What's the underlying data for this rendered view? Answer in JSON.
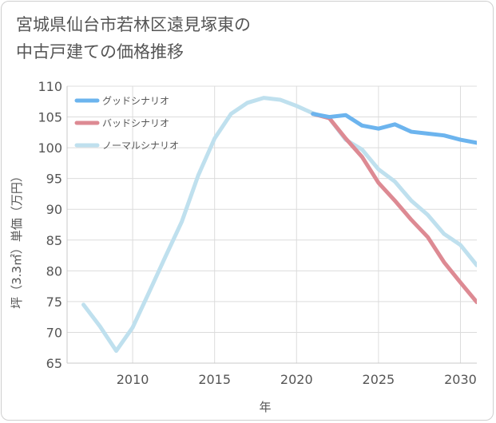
{
  "title_lines": [
    "宮城県仙台市若林区遠見塚東の",
    "中古戸建ての価格推移"
  ],
  "chart_data": {
    "type": "line",
    "xlabel": "年",
    "ylabel": "坪（3.3㎡）単価（万円）",
    "xlim": [
      2006,
      2031
    ],
    "ylim": [
      65,
      110
    ],
    "x_ticks": [
      2010,
      2015,
      2020,
      2025,
      2030
    ],
    "y_ticks": [
      65,
      70,
      75,
      80,
      85,
      90,
      95,
      100,
      105,
      110
    ],
    "grid": true,
    "legend_position": "top-left",
    "series": [
      {
        "name": "グッドシナリオ",
        "color": "#6cb4ee",
        "x": [
          2021,
          2022,
          2023,
          2024,
          2025,
          2026,
          2027,
          2028,
          2029,
          2030,
          2031
        ],
        "y": [
          105.5,
          105.0,
          105.3,
          103.6,
          103.1,
          103.8,
          102.6,
          102.3,
          102.0,
          101.3,
          100.8
        ]
      },
      {
        "name": "バッドシナリオ",
        "color": "#dd8a93",
        "x": [
          2021,
          2022,
          2023,
          2024,
          2025,
          2026,
          2027,
          2028,
          2029,
          2030,
          2031
        ],
        "y": [
          105.5,
          104.8,
          101.5,
          98.5,
          94.3,
          91.4,
          88.3,
          85.5,
          81.4,
          78.1,
          74.9
        ]
      },
      {
        "name": "ノーマルシナリオ",
        "color": "#bfe0ee",
        "x": [
          2007,
          2008,
          2009,
          2010,
          2011,
          2012,
          2013,
          2014,
          2015,
          2016,
          2017,
          2018,
          2019,
          2020,
          2021,
          2022,
          2023,
          2024,
          2025,
          2026,
          2027,
          2028,
          2029,
          2030,
          2031
        ],
        "y": [
          74.5,
          71.0,
          67.0,
          70.8,
          76.5,
          82.3,
          88.0,
          95.5,
          101.5,
          105.5,
          107.3,
          108.1,
          107.8,
          106.8,
          105.6,
          104.8,
          101.3,
          99.7,
          96.5,
          94.5,
          91.4,
          89.1,
          86.0,
          84.2,
          80.9
        ]
      }
    ]
  }
}
